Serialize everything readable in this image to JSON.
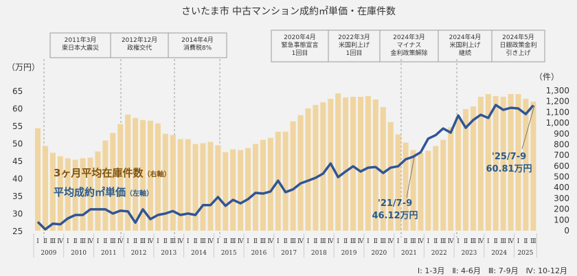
{
  "chart_data": {
    "type": "bar+line",
    "title": "さいたま市 中古マンション成約㎡単価・在庫件数",
    "left_axis": {
      "unit": "（万円）",
      "range": [
        25,
        65
      ],
      "ticks": [
        "65",
        "60",
        "55",
        "50",
        "45",
        "40",
        "35",
        "30",
        "25"
      ]
    },
    "right_axis": {
      "unit": "（件）",
      "range": [
        0,
        1300
      ],
      "ticks": [
        "1,300",
        "1,200",
        "1,100",
        "1,000",
        "900",
        "800",
        "700",
        "600",
        "500",
        "400",
        "300",
        "200",
        "100",
        "0"
      ]
    },
    "years": [
      "2009",
      "2010",
      "2011",
      "2012",
      "2013",
      "2014",
      "2015",
      "2016",
      "2017",
      "2018",
      "2019",
      "2020",
      "2021",
      "2022",
      "2023",
      "2024",
      "2025"
    ],
    "quarter_labels": [
      "Ⅰ",
      "Ⅱ",
      "Ⅲ",
      "Ⅳ"
    ],
    "grid": false,
    "series": [
      {
        "name": "3ヶ月平均在庫件数",
        "axis_note": "（右軸）",
        "type": "bar",
        "axis": "right",
        "color": "#f0d5a0",
        "values": [
          951,
          786,
          723,
          691,
          672,
          659,
          672,
          678,
          736,
          837,
          907,
          989,
          1078,
          1046,
          1027,
          1021,
          996,
          900,
          888,
          850,
          850,
          805,
          812,
          824,
          793,
          729,
          755,
          748,
          767,
          805,
          843,
          862,
          919,
          919,
          1015,
          1072,
          1135,
          1167,
          1192,
          1224,
          1275,
          1237,
          1243,
          1243,
          1249,
          1218,
          1148,
          1008,
          894,
          818,
          748,
          720,
          742,
          786,
          843,
          960,
          1060,
          1129,
          1154,
          1243,
          1268,
          1249,
          1243,
          1268,
          1268,
          1224,
          1198
        ]
      },
      {
        "name": "平均成約㎡単価",
        "axis_note": "（左軸）",
        "type": "line",
        "axis": "left",
        "color": "#2f5597",
        "values": [
          27.5,
          25.4,
          27.0,
          26.8,
          28.5,
          29.5,
          29.5,
          31.1,
          31.1,
          31.1,
          29.9,
          30.7,
          30.5,
          27.3,
          31.1,
          28.3,
          29.5,
          29.9,
          30.6,
          29.5,
          29.9,
          29.5,
          32.3,
          32.3,
          34.6,
          32.1,
          33.8,
          32.8,
          34.0,
          35.8,
          35.6,
          36.2,
          39.3,
          36.0,
          36.8,
          38.5,
          39.3,
          40.1,
          41.3,
          44.2,
          40.3,
          41.9,
          43.4,
          41.9,
          43.0,
          43.2,
          41.5,
          43.0,
          43.4,
          45.4,
          46.12,
          47.4,
          51.3,
          52.3,
          54.2,
          53.0,
          57.9,
          54.4,
          56.6,
          58.1,
          57.2,
          60.9,
          59.5,
          60.1,
          59.9,
          58.3,
          60.81
        ]
      }
    ],
    "annotations": [
      {
        "label": "'21/7-9",
        "value": "46.12万円",
        "index": 50
      },
      {
        "label": "'25/7-9",
        "value": "60.81万円",
        "index": 66
      }
    ],
    "events_group1": [
      {
        "date": "2011年3月",
        "text": "東日本大震災"
      },
      {
        "date": "2012年12月",
        "text": "政権交代"
      },
      {
        "date": "2014年4月",
        "text": "消費税8%"
      }
    ],
    "events_group2": [
      {
        "date": "2020年4月",
        "text": "緊急事態宣言",
        "text2": "1回目"
      },
      {
        "date": "2022年3月",
        "text": "米国利上げ",
        "text2": "1回目"
      },
      {
        "date": "2024年3月",
        "text": "マイナス",
        "text2": "金利政策解除"
      },
      {
        "date": "2024年4月",
        "text": "米国利上げ",
        "text2": "継続"
      },
      {
        "date": "2024年5月",
        "text": "日銀政策金利",
        "text2": "引き上げ"
      }
    ],
    "footnote": "Ⅰ: 1-3月　Ⅱ: 4-6月　Ⅲ: 7-9月　Ⅳ: 10-12月"
  }
}
